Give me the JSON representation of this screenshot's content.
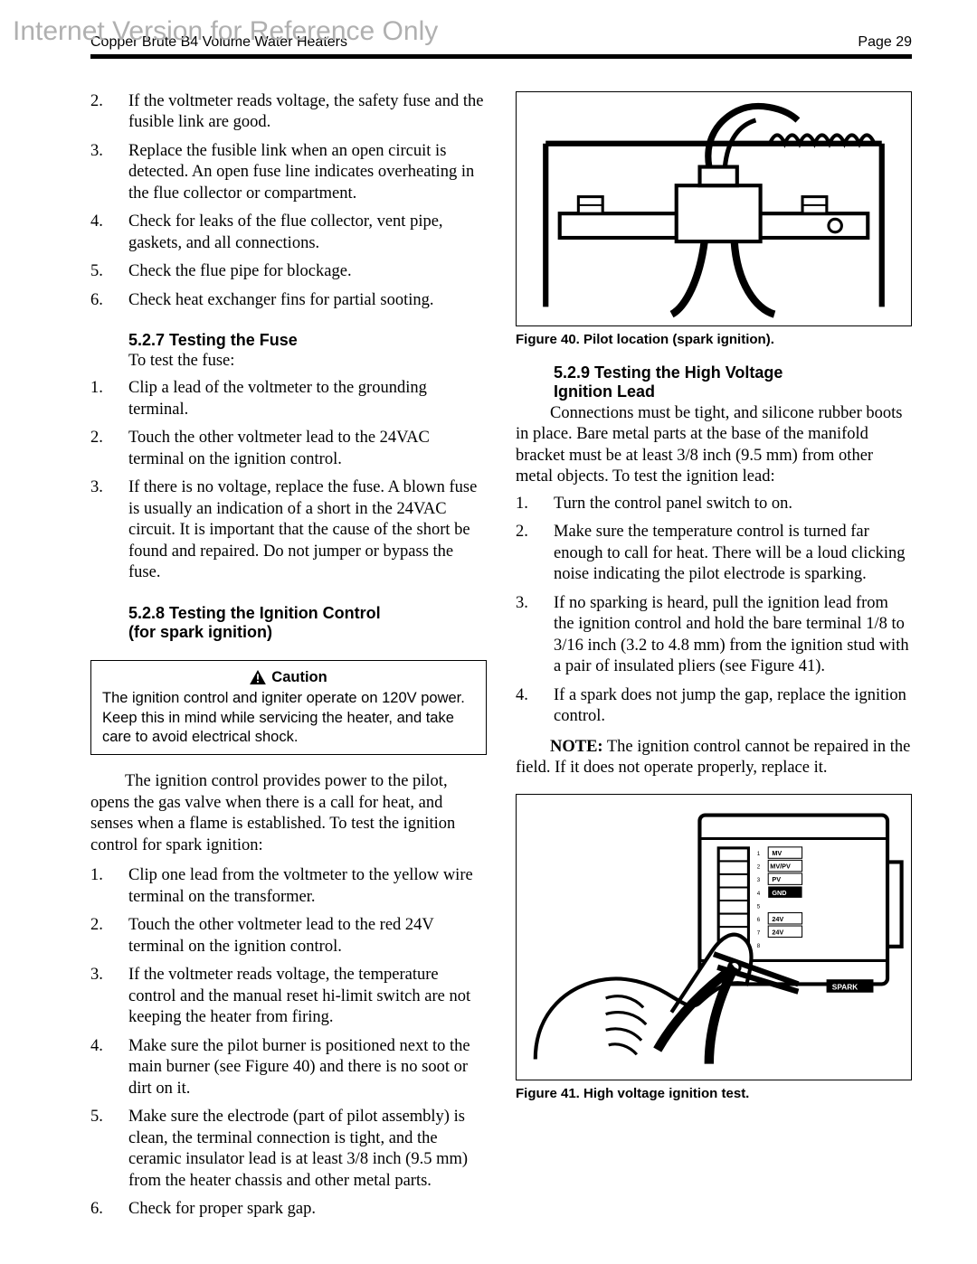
{
  "watermark": "Internet Version for Reference Only",
  "header": {
    "title": "Copper Brute B4 Volume Water Heaters",
    "page_label": "Page 29"
  },
  "left": {
    "top_list": [
      "If the voltmeter reads voltage, the safety fuse and the fusible link are good.",
      "Replace the fusible link when an open circuit is detected. An open fuse line indicates overheating in the flue collector or compartment.",
      "Check for leaks of the flue collector, vent pipe, gaskets, and all connections.",
      "Check the flue pipe for blockage.",
      "Check heat exchanger fins for partial sooting."
    ],
    "top_list_start": 2,
    "sec527_title": "5.2.7  Testing the Fuse",
    "sec527_intro": "To test the fuse:",
    "sec527_list": [
      "Clip a lead of the voltmeter to the grounding terminal.",
      "Touch the other voltmeter lead to the 24VAC terminal on the ignition control.",
      "If there is no voltage, replace the fuse. A blown fuse is usually an indication of a short in the 24VAC circuit. It is important that the cause of the short be found and repaired. Do not jumper or bypass the fuse."
    ],
    "sec528_title_l1": "5.2.8  Testing the Ignition Control",
    "sec528_title_l2": "(for spark ignition)",
    "caution_label": "Caution",
    "caution_text": "The ignition control and igniter operate on 120V power. Keep this in mind while servicing the heater, and take care to avoid electrical shock.",
    "sec528_para": "The ignition control provides power to the pilot, opens the gas valve when there is a call for heat, and senses when a flame is established. To test the ignition control for spark ignition:",
    "sec528_list": [
      "Clip one lead from the voltmeter to the yellow wire terminal on the transformer.",
      "Touch the other voltmeter lead to the red 24V terminal on the ignition control.",
      "If the voltmeter reads voltage, the temperature control and the manual reset hi-limit switch are not keeping the heater from firing.",
      "Make sure the pilot burner is positioned next to the main burner (see Figure 40) and there is no soot or dirt on it.",
      "Make sure the electrode (part of pilot assembly) is clean, the terminal connection is tight, and the ceramic insulator lead is at least 3/8 inch (9.5 mm) from the heater chassis and other metal parts.",
      "Check for proper spark gap."
    ]
  },
  "right": {
    "fig40_caption": "Figure 40.  Pilot location (spark ignition).",
    "sec529_title_l1": "5.2.9  Testing the High Voltage",
    "sec529_title_l2": "Ignition Lead",
    "sec529_para": "Connections must be tight, and silicone rubber boots in place. Bare metal parts at the base of the manifold bracket must be at least 3/8 inch (9.5 mm) from other metal objects. To test the ignition lead:",
    "sec529_list": [
      "Turn the control panel switch to on.",
      "Make sure the temperature control is turned far enough to call for heat. There will be a loud clicking noise indicating the pilot electrode is sparking.",
      "If no sparking is heard, pull the ignition lead from the ignition control and hold the bare terminal 1/8 to 3/16 inch (3.2 to 4.8 mm) from the ignition stud with a pair of insulated pliers (see Figure 41).",
      "If a spark does not jump the gap, replace the ignition control."
    ],
    "note_html": "<b>NOTE:</b> The ignition control cannot be repaired in the field. If it does not operate properly, replace it.",
    "fig41_caption": "Figure 41.  High voltage ignition test."
  }
}
